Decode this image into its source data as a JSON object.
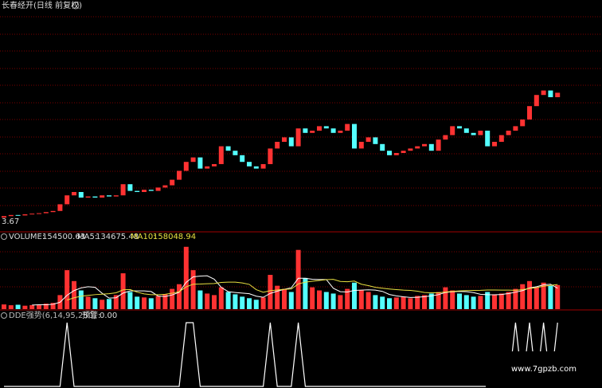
{
  "chart_data": [
    {
      "type": "candlestick",
      "title": "长春经开(日线 前复权)",
      "ylim": [
        3,
        13
      ],
      "up_color": "#ff3232",
      "down_color": "#54ffff",
      "open": [
        3.6,
        3.67,
        3.72,
        3.7,
        3.75,
        3.78,
        3.8,
        3.85,
        3.9,
        4.2,
        4.6,
        4.75,
        4.5,
        4.55,
        4.5,
        4.6,
        4.55,
        4.6,
        5.1,
        4.8,
        4.75,
        4.85,
        4.8,
        4.95,
        5.05,
        5.3,
        5.7,
        6.1,
        6.3,
        5.8,
        5.9,
        6.0,
        6.8,
        6.6,
        6.4,
        6.1,
        5.9,
        5.8,
        6.0,
        6.7,
        7.0,
        7.2,
        6.8,
        7.6,
        7.4,
        7.5,
        7.7,
        7.6,
        7.4,
        7.5,
        7.8,
        6.7,
        7.0,
        7.2,
        6.9,
        6.6,
        6.4,
        6.5,
        6.6,
        6.7,
        6.8,
        6.9,
        6.6,
        7.1,
        7.3,
        7.7,
        7.6,
        7.4,
        7.3,
        7.5,
        6.8,
        7.0,
        7.3,
        7.5,
        7.7,
        8.0,
        8.6,
        9.1,
        9.3,
        9.0
      ],
      "close": [
        3.67,
        3.72,
        3.7,
        3.75,
        3.78,
        3.8,
        3.85,
        3.9,
        4.2,
        4.6,
        4.75,
        4.5,
        4.55,
        4.5,
        4.6,
        4.55,
        4.6,
        5.1,
        4.8,
        4.75,
        4.85,
        4.8,
        4.95,
        5.05,
        5.3,
        5.7,
        6.1,
        6.3,
        5.8,
        5.9,
        6.0,
        6.8,
        6.6,
        6.4,
        6.1,
        5.9,
        5.8,
        6.0,
        6.7,
        7.0,
        7.2,
        6.8,
        7.6,
        7.4,
        7.5,
        7.7,
        7.6,
        7.4,
        7.5,
        7.8,
        6.7,
        7.0,
        7.2,
        6.9,
        6.6,
        6.4,
        6.5,
        6.6,
        6.7,
        6.8,
        6.9,
        6.6,
        7.1,
        7.3,
        7.7,
        7.6,
        7.4,
        7.3,
        7.5,
        6.8,
        7.0,
        7.3,
        7.5,
        7.7,
        8.0,
        8.6,
        9.1,
        9.3,
        9.0,
        9.2
      ]
    },
    {
      "type": "bar",
      "title": "VOLUME:",
      "ylim": [
        0,
        450000
      ],
      "values": [
        30000,
        25000,
        28000,
        22000,
        26000,
        30000,
        35000,
        40000,
        90000,
        250000,
        180000,
        120000,
        80000,
        70000,
        60000,
        65000,
        90000,
        230000,
        110000,
        80000,
        75000,
        70000,
        85000,
        95000,
        130000,
        160000,
        400000,
        250000,
        120000,
        100000,
        90000,
        140000,
        110000,
        95000,
        80000,
        70000,
        60000,
        75000,
        220000,
        150000,
        130000,
        110000,
        380000,
        200000,
        140000,
        120000,
        110000,
        100000,
        90000,
        130000,
        170000,
        120000,
        110000,
        90000,
        80000,
        70000,
        75000,
        80000,
        70000,
        85000,
        90000,
        100000,
        110000,
        140000,
        120000,
        100000,
        90000,
        80000,
        85000,
        110000,
        95000,
        100000,
        110000,
        130000,
        160000,
        180000,
        140000,
        170000,
        150000,
        154500.63
      ],
      "series": [
        {
          "name": "MA5:",
          "color": "#ffffff",
          "values": [
            null,
            null,
            null,
            null,
            26000,
            28000,
            28000,
            31000,
            44000,
            89000,
            119000,
            136000,
            144000,
            140000,
            102000,
            71000,
            73000,
            103000,
            117000,
            117000,
            117000,
            113000,
            84000,
            81000,
            91000,
            108000,
            172000,
            207000,
            212000,
            214000,
            192000,
            140000,
            112000,
            107000,
            103000,
            99000,
            83000,
            76000,
            101000,
            115000,
            127000,
            137000,
            198000,
            198000,
            192000,
            190000,
            190000,
            134000,
            112000,
            110000,
            120000,
            122000,
            124000,
            122000,
            114000,
            94000,
            85000,
            79000,
            75000,
            76000,
            80000,
            85000,
            93000,
            107000,
            112000,
            114000,
            112000,
            106000,
            95000,
            93000,
            92000,
            94000,
            100000,
            109000,
            119000,
            136000,
            144000,
            156000,
            160000,
            134675.48
          ]
        },
        {
          "name": "MA10:",
          "color": "#e8e040",
          "values": [
            null,
            null,
            null,
            null,
            null,
            null,
            null,
            null,
            null,
            58000,
            73000,
            83000,
            88000,
            93000,
            96000,
            99000,
            105000,
            124000,
            126000,
            109000,
            98000,
            93000,
            93000,
            95000,
            102000,
            112000,
            143000,
            160000,
            161000,
            163000,
            164000,
            171000,
            173000,
            173000,
            168000,
            159000,
            125000,
            108000,
            118000,
            123000,
            127000,
            129000,
            162000,
            173000,
            179000,
            184000,
            189000,
            191000,
            178000,
            176000,
            180000,
            160000,
            151000,
            140000,
            134000,
            129000,
            125000,
            122000,
            120000,
            115000,
            107000,
            105000,
            105000,
            110000,
            114000,
            117000,
            119000,
            120000,
            121000,
            123000,
            123000,
            122000,
            122000,
            121000,
            125000,
            133000,
            138000,
            147000,
            153000,
            158048.94
          ]
        }
      ]
    },
    {
      "type": "line",
      "title": "DDE强势(6,14,95,250)",
      "ylim": [
        0,
        1
      ],
      "color": "#ffffff",
      "warning": "预警:",
      "warning_value": {
        "value": 0,
        "label": "0.00"
      },
      "values": [
        0,
        0,
        0,
        0,
        0,
        0,
        0,
        0,
        0,
        1,
        0,
        0,
        0,
        0,
        0,
        0,
        0,
        0,
        0,
        0,
        0,
        0,
        0,
        0,
        0,
        0,
        1,
        1,
        0,
        0,
        0,
        0,
        0,
        0,
        0,
        0,
        0,
        0,
        1,
        0,
        0,
        0,
        1,
        0,
        0,
        0,
        0,
        0,
        0,
        0,
        0,
        0,
        0,
        0,
        0,
        0,
        0,
        0,
        0,
        0,
        0,
        0,
        0,
        0,
        0,
        0,
        0,
        0,
        0,
        0,
        0,
        0,
        0,
        1,
        0,
        1,
        0,
        1,
        0,
        1
      ]
    },
    {
      "watermark": "www.7gpzb.com"
    }
  ]
}
